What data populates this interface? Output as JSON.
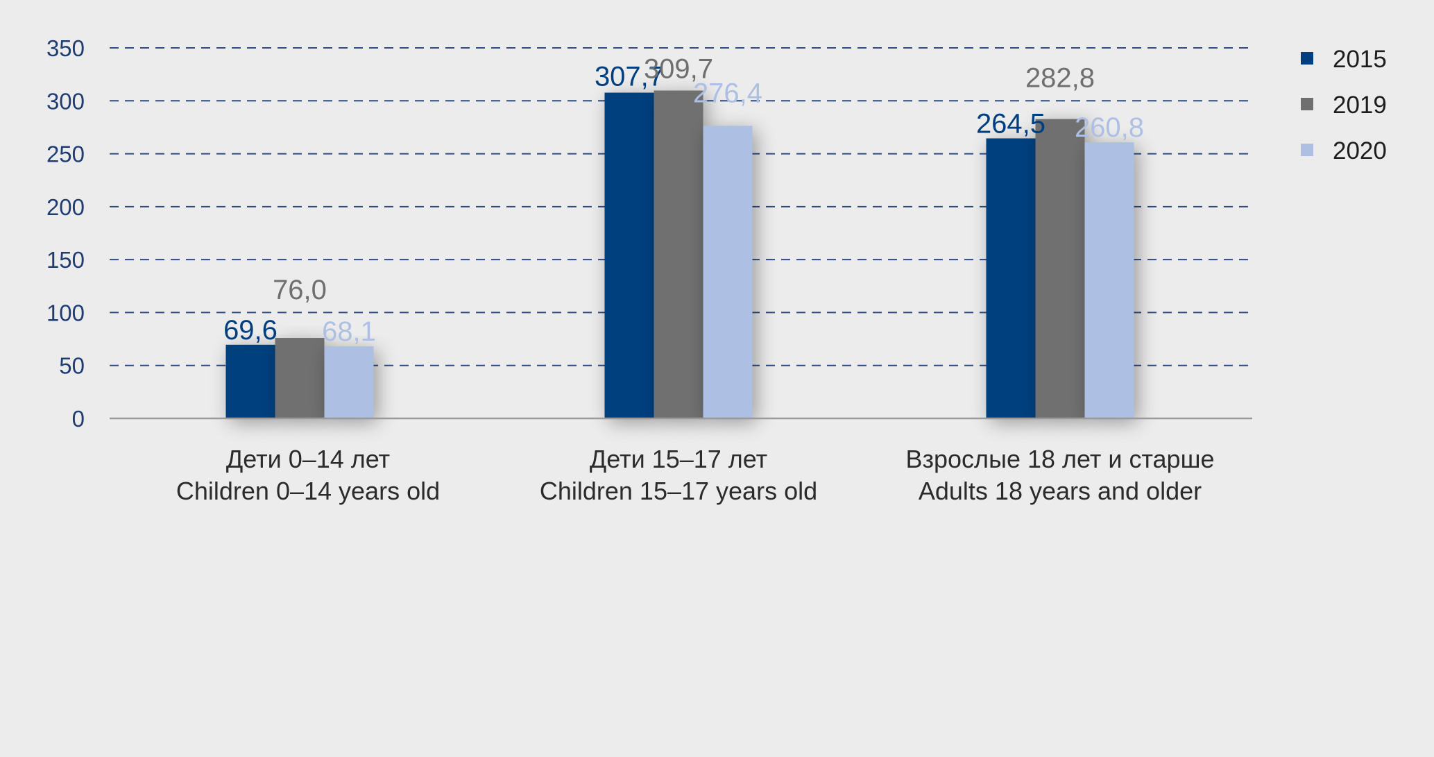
{
  "chart_data": {
    "type": "bar",
    "title": "",
    "xlabel": "",
    "ylabel": "",
    "ylim": [
      0,
      350
    ],
    "yticks": [
      0,
      50,
      100,
      150,
      200,
      250,
      300,
      350
    ],
    "grid": true,
    "legend_position": "top-right",
    "categories": [
      [
        "Дети 0–14 лет",
        "Children 0–14 years old"
      ],
      [
        "Дети 15–17 лет",
        "Children 15–17 years old"
      ],
      [
        "Взрослые 18 лет и старше",
        "Adults 18 years and older"
      ]
    ],
    "series": [
      {
        "name": "2015",
        "values": [
          69.6,
          307.7,
          264.5
        ],
        "labels": [
          "69,6",
          "307,7",
          "264,5"
        ],
        "color": "#003f7f"
      },
      {
        "name": "2019",
        "values": [
          76.0,
          309.7,
          282.8
        ],
        "labels": [
          "76,0",
          "309,7",
          "282,8"
        ],
        "color": "#6f6f6f"
      },
      {
        "name": "2020",
        "values": [
          68.1,
          276.4,
          260.8
        ],
        "labels": [
          "68,1",
          "276,4",
          "260,8"
        ],
        "color": "#aebfe4"
      }
    ],
    "colors": {
      "axis_tick": "#1f3d73",
      "gridline": "#2e4a80",
      "baseline": "#9a9a9a",
      "background": "#ececec"
    }
  }
}
